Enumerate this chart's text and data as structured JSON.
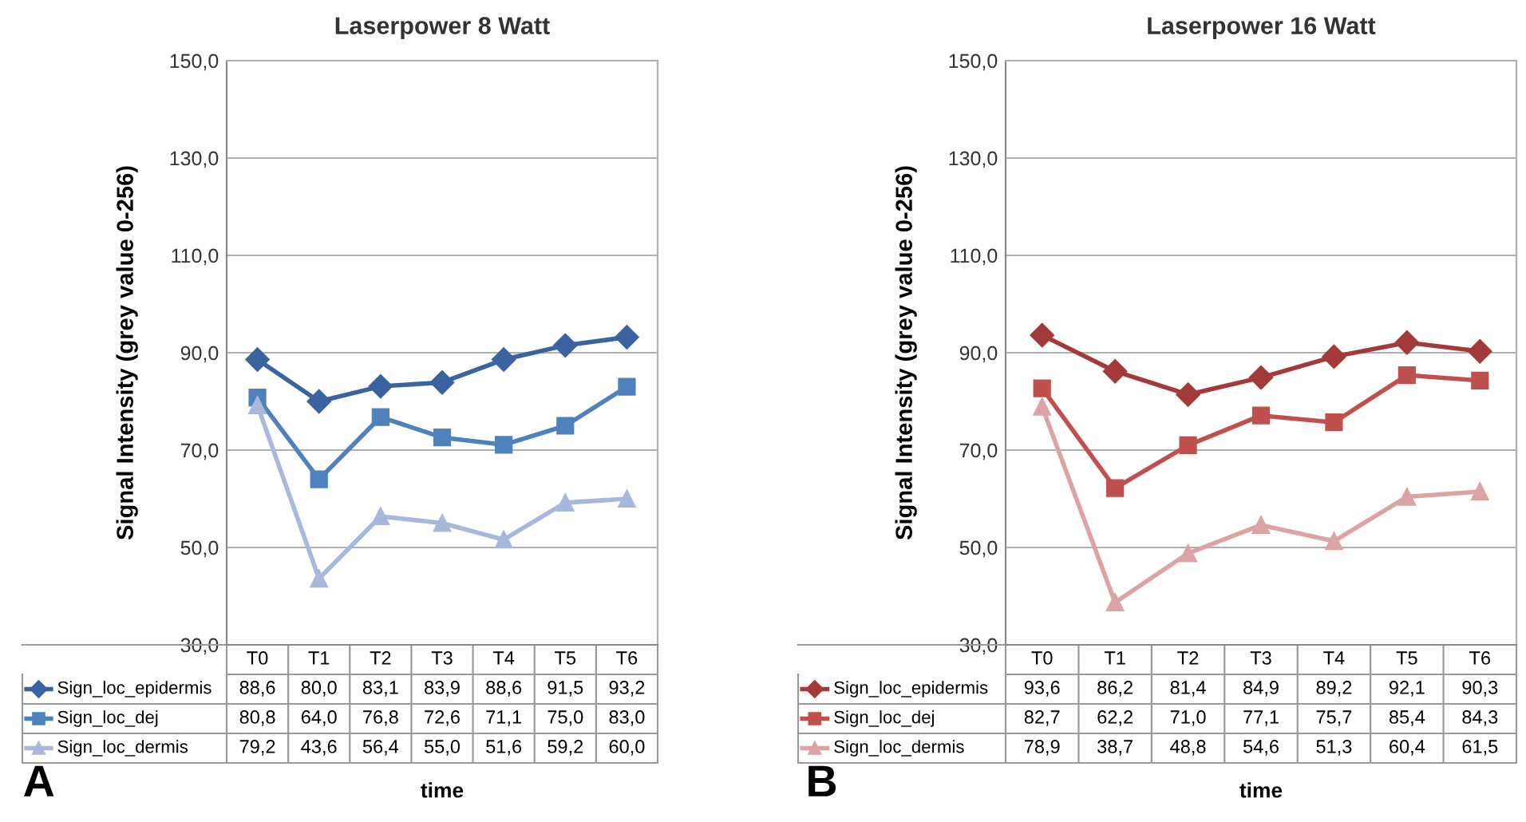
{
  "chart_data": [
    {
      "type": "line",
      "title": "Laserpower 8 Watt",
      "ylabel": "Signal Intensity (grey value 0-256)",
      "xlabel": "time",
      "categories": [
        "T0",
        "T1",
        "T2",
        "T3",
        "T4",
        "T5",
        "T6"
      ],
      "series": [
        {
          "name": "Sign_loc_epidermis",
          "color": "#3a63a0",
          "marker": "diamond",
          "values": [
            88.6,
            80.0,
            83.1,
            83.9,
            88.6,
            91.5,
            93.2
          ],
          "value_labels": [
            "88,6",
            "80,0",
            "83,1",
            "83,9",
            "88,6",
            "91,5",
            "93,2"
          ]
        },
        {
          "name": "Sign_loc_dej",
          "color": "#4f81bd",
          "marker": "square",
          "values": [
            80.8,
            64.0,
            76.8,
            72.6,
            71.1,
            75.0,
            83.0
          ],
          "value_labels": [
            "80,8",
            "64,0",
            "76,8",
            "72,6",
            "71,1",
            "75,0",
            "83,0"
          ]
        },
        {
          "name": "Sign_loc_dermis",
          "color": "#a7b8dc",
          "marker": "triangle",
          "values": [
            79.2,
            43.6,
            56.4,
            55.0,
            51.6,
            59.2,
            60.0
          ],
          "value_labels": [
            "79,2",
            "43,6",
            "56,4",
            "55,0",
            "51,6",
            "59,2",
            "60,0"
          ]
        }
      ],
      "ylim": [
        30,
        150
      ],
      "yticks": [
        {
          "value": 30,
          "label": "30,0"
        },
        {
          "value": 50,
          "label": "50,0"
        },
        {
          "value": 70,
          "label": "70,0"
        },
        {
          "value": 90,
          "label": "90,0"
        },
        {
          "value": 110,
          "label": "110,0"
        },
        {
          "value": 130,
          "label": "130,0"
        },
        {
          "value": 150,
          "label": "150,0"
        }
      ],
      "grid": "y",
      "line_style": "solid",
      "legend": "bottom left",
      "annotations": [
        "A"
      ]
    },
    {
      "type": "line",
      "title": "Laserpower 16 Watt",
      "ylabel": "Signal Intensity (grey value 0-256)",
      "xlabel": "time",
      "categories": [
        "T0",
        "T1",
        "T2",
        "T3",
        "T4",
        "T5",
        "T6"
      ],
      "series": [
        {
          "name": "Sign_loc_epidermis",
          "color": "#a33a3a",
          "marker": "diamond",
          "values": [
            93.6,
            86.2,
            81.4,
            84.9,
            89.2,
            92.1,
            90.3
          ],
          "value_labels": [
            "93,6",
            "86,2",
            "81,4",
            "84,9",
            "89,2",
            "92,1",
            "90,3"
          ]
        },
        {
          "name": "Sign_loc_dej",
          "color": "#c0504d",
          "marker": "square",
          "values": [
            82.7,
            62.2,
            71.0,
            77.1,
            75.7,
            85.4,
            84.3
          ],
          "value_labels": [
            "82,7",
            "62,2",
            "71,0",
            "77,1",
            "75,7",
            "85,4",
            "84,3"
          ]
        },
        {
          "name": "Sign_loc_dermis",
          "color": "#dba3a3",
          "marker": "triangle",
          "values": [
            78.9,
            38.7,
            48.8,
            54.6,
            51.3,
            60.4,
            61.5
          ],
          "value_labels": [
            "78,9",
            "38,7",
            "48,8",
            "54,6",
            "51,3",
            "60,4",
            "61,5"
          ]
        }
      ],
      "ylim": [
        30,
        150
      ],
      "yticks": [
        {
          "value": 30,
          "label": "30,0"
        },
        {
          "value": 50,
          "label": "50,0"
        },
        {
          "value": 70,
          "label": "70,0"
        },
        {
          "value": 90,
          "label": "90,0"
        },
        {
          "value": 110,
          "label": "110,0"
        },
        {
          "value": 130,
          "label": "130,0"
        },
        {
          "value": 150,
          "label": "150,0"
        }
      ],
      "grid": "y",
      "line_style": "solid",
      "legend": "bottom left",
      "annotations": [
        "B"
      ]
    }
  ]
}
